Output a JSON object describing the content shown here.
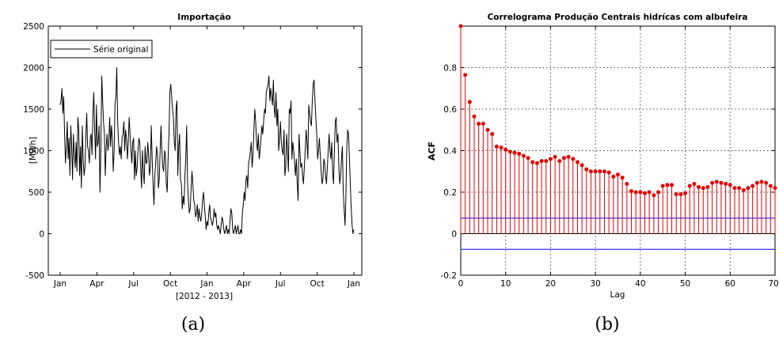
{
  "panels": {
    "a": {
      "caption": "(a)",
      "title": "Importação",
      "ylabel": "[MWh]",
      "xlabel": "[2012 - 2013]",
      "legend": "Série original"
    },
    "b": {
      "caption": "(b)",
      "title": "Correlograma Produção Centrais hidrícas com albufeira",
      "ylabel": "ACF",
      "xlabel": "Lag"
    }
  },
  "chart_data": [
    {
      "type": "line",
      "title": "Importação",
      "xlabel": "[2012 - 2013]",
      "ylabel": "[MWh]",
      "ylim": [
        -500,
        2500
      ],
      "yticks": [
        -500,
        0,
        500,
        1000,
        1500,
        2000,
        2500
      ],
      "xticks": [
        "Jan",
        "Apr",
        "Jul",
        "Oct",
        "Jan",
        "Apr",
        "Jul",
        "Oct",
        "Jan"
      ],
      "grid": false,
      "legend_position": "top-left",
      "series": [
        {
          "name": "Série original",
          "color": "#000000",
          "values": [
            1550,
            1600,
            1750,
            1450,
            1650,
            1200,
            850,
            1050,
            1350,
            900,
            1150,
            700,
            1300,
            1050,
            650,
            1200,
            950,
            800,
            1100,
            750,
            1400,
            1250,
            700,
            1050,
            550,
            1300,
            900,
            700,
            800,
            1150,
            1450,
            1050,
            1000,
            850,
            1150,
            1200,
            950,
            1450,
            1700,
            1250,
            900,
            1550,
            1050,
            1100,
            1300,
            500,
            1000,
            1900,
            1600,
            1350,
            1200,
            700,
            1050,
            1200,
            1000,
            1100,
            1400,
            1050,
            1300,
            1150,
            750,
            1000,
            1550,
            1650,
            2000,
            1350,
            1100,
            950,
            1050,
            900,
            1150,
            1200,
            1350,
            1000,
            1250,
            1150,
            900,
            1100,
            1400,
            1200,
            1000,
            850,
            1100,
            1150,
            650,
            1000,
            700,
            800,
            1000,
            1150,
            1100,
            800,
            550,
            1000,
            750,
            600,
            1050,
            850,
            850,
            1100,
            950,
            700,
            800,
            1300,
            900,
            600,
            350,
            700,
            850,
            1050,
            950,
            550,
            650,
            1000,
            1300,
            1000,
            800,
            750,
            1000,
            950,
            600,
            500,
            900,
            1200,
            1700,
            1800,
            1650,
            1500,
            1400,
            1100,
            1000,
            1500,
            1600,
            700,
            1050,
            1200,
            650,
            600,
            300,
            450,
            350,
            700,
            900,
            1300,
            600,
            400,
            250,
            300,
            550,
            750,
            600,
            400,
            350,
            200,
            250,
            350,
            150,
            300,
            200,
            150,
            250,
            400,
            500,
            350,
            200,
            50,
            150,
            100,
            250,
            350,
            200,
            150,
            100,
            150,
            300,
            200,
            250,
            100,
            50,
            100,
            50,
            0,
            100,
            200,
            150,
            50,
            0,
            50,
            100,
            0,
            50,
            0,
            150,
            300,
            250,
            50,
            0,
            50,
            100,
            0,
            50,
            100,
            0,
            0,
            50,
            0,
            250,
            350,
            500,
            400,
            650,
            700,
            550,
            850,
            900,
            1000,
            1100,
            800,
            950,
            1250,
            1500,
            1350,
            1100,
            1000,
            1200,
            900,
            1000,
            1150,
            1300,
            1200,
            1350,
            1500,
            1450,
            1700,
            1750,
            1800,
            1900,
            1600,
            1750,
            1650,
            1550,
            1850,
            1500,
            1400,
            1700,
            1300,
            1500,
            1000,
            1150,
            1350,
            1100,
            1000,
            950,
            1250,
            700,
            800,
            1200,
            1000,
            750,
            1500,
            1450,
            1600,
            900,
            1100,
            1000,
            850,
            700,
            900,
            600,
            400,
            1200,
            1000,
            800,
            850,
            700,
            600,
            800,
            1000,
            1250,
            1100,
            900,
            1550,
            1450,
            1350,
            1300,
            1600,
            1800,
            1850,
            1600,
            1400,
            1200,
            900,
            1000,
            1150,
            950,
            750,
            600,
            650,
            900,
            850,
            700,
            600,
            800,
            1000,
            1200,
            1000,
            900,
            1100,
            750,
            600,
            1000,
            1350,
            1400,
            1100,
            1200,
            800,
            600,
            700,
            900,
            1050,
            500,
            300,
            100,
            450,
            1050,
            1250,
            1200,
            900,
            600,
            300,
            100,
            0,
            50
          ]
        }
      ]
    },
    {
      "type": "stem",
      "title": "Correlograma Produção Centrais hidrícas com albufeira",
      "xlabel": "Lag",
      "ylabel": "ACF",
      "xlim": [
        0,
        70
      ],
      "ylim": [
        -0.2,
        1.0
      ],
      "xticks": [
        0,
        10,
        20,
        30,
        40,
        50,
        60,
        70
      ],
      "yticks": [
        -0.2,
        0,
        0.2,
        0.4,
        0.6,
        0.8
      ],
      "grid": true,
      "confidence_bounds": [
        0.075,
        -0.075
      ],
      "colors": {
        "stem": "#e60000",
        "bound": "#0000ff",
        "zero": "#000000"
      },
      "lags": [
        0,
        1,
        2,
        3,
        4,
        5,
        6,
        7,
        8,
        9,
        10,
        11,
        12,
        13,
        14,
        15,
        16,
        17,
        18,
        19,
        20,
        21,
        22,
        23,
        24,
        25,
        26,
        27,
        28,
        29,
        30,
        31,
        32,
        33,
        34,
        35,
        36,
        37,
        38,
        39,
        40,
        41,
        42,
        43,
        44,
        45,
        46,
        47,
        48,
        49,
        50,
        51,
        52,
        53,
        54,
        55,
        56,
        57,
        58,
        59,
        60,
        61,
        62,
        63,
        64,
        65,
        66,
        67,
        68,
        69,
        70
      ],
      "values": [
        1.0,
        0.765,
        0.635,
        0.565,
        0.53,
        0.53,
        0.5,
        0.48,
        0.42,
        0.415,
        0.405,
        0.395,
        0.39,
        0.385,
        0.375,
        0.365,
        0.345,
        0.34,
        0.35,
        0.35,
        0.36,
        0.37,
        0.35,
        0.365,
        0.37,
        0.36,
        0.345,
        0.33,
        0.31,
        0.3,
        0.3,
        0.3,
        0.3,
        0.295,
        0.275,
        0.285,
        0.27,
        0.24,
        0.205,
        0.2,
        0.2,
        0.195,
        0.2,
        0.185,
        0.2,
        0.23,
        0.235,
        0.235,
        0.19,
        0.19,
        0.195,
        0.23,
        0.24,
        0.225,
        0.22,
        0.225,
        0.245,
        0.25,
        0.245,
        0.24,
        0.235,
        0.22,
        0.22,
        0.21,
        0.22,
        0.23,
        0.245,
        0.25,
        0.245,
        0.23,
        0.22
      ]
    }
  ]
}
